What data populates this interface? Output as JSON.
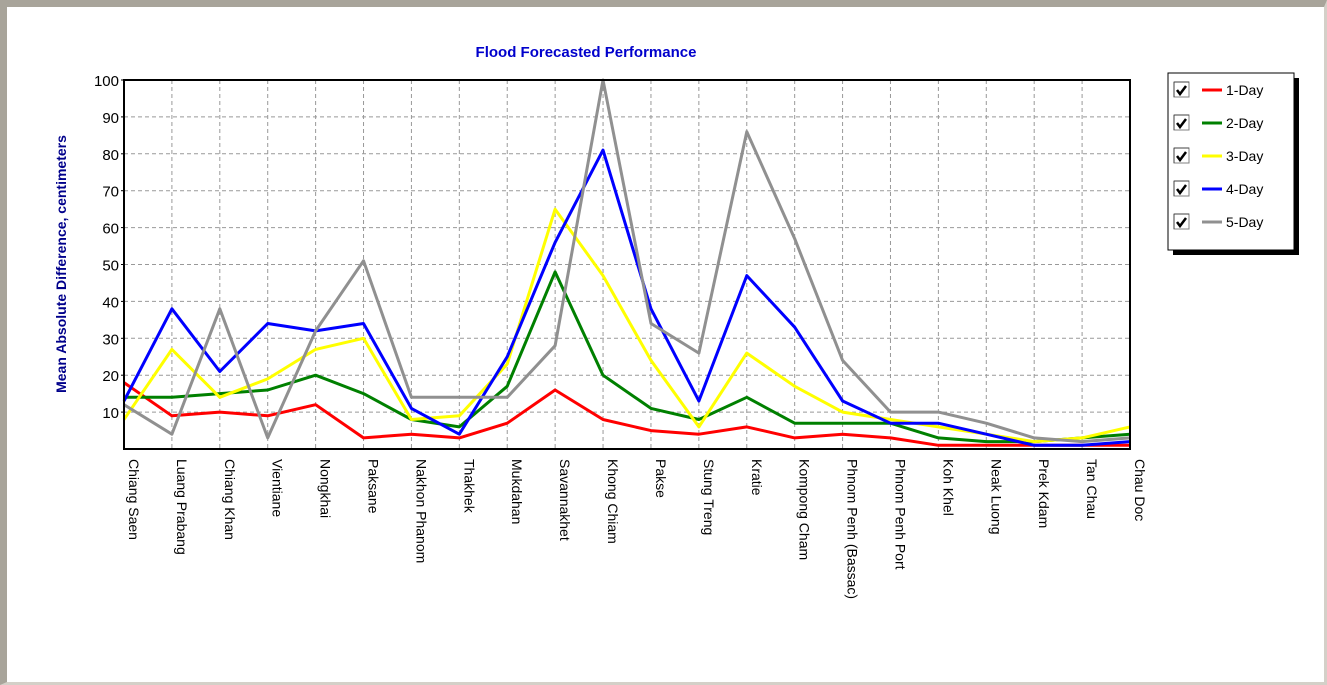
{
  "colors": {
    "title": "#0000cc",
    "ylabel": "#00008b",
    "grid": "#999999"
  },
  "chart_data": {
    "type": "line",
    "title": "Flood Forecasted Performance",
    "xlabel": "",
    "ylabel": "Mean Absolute Difference, centimeters",
    "ylim": [
      0,
      100
    ],
    "yticks": [
      10,
      20,
      30,
      40,
      50,
      60,
      70,
      80,
      90,
      100
    ],
    "grid": true,
    "legend_position": "top-right",
    "categories": [
      "Chiang Saen",
      "Luang Prabang",
      "Chiang Khan",
      "Vientiane",
      "Nongkhai",
      "Paksane",
      "Nakhon Phanom",
      "Thakhek",
      "Mukdahan",
      "Savannakhet",
      "Khong Chiam",
      "Pakse",
      "Stung Treng",
      "Kratie",
      "Kompong Cham",
      "Phnom Penh (Bassac)",
      "Phnom Penh Port",
      "Koh Khel",
      "Neak Luong",
      "Prek Kdam",
      "Tan Chau",
      "Chau Doc"
    ],
    "series": [
      {
        "name": "1-Day",
        "color": "#ff0000",
        "checked": true,
        "values": [
          18,
          9,
          10,
          9,
          12,
          3,
          4,
          3,
          7,
          16,
          8,
          5,
          4,
          6,
          3,
          4,
          3,
          1,
          1,
          1,
          1,
          1
        ]
      },
      {
        "name": "2-Day",
        "color": "#008000",
        "checked": true,
        "values": [
          14,
          14,
          15,
          16,
          20,
          15,
          8,
          6,
          17,
          48,
          20,
          11,
          8,
          14,
          7,
          7,
          7,
          3,
          2,
          2,
          3,
          4
        ]
      },
      {
        "name": "3-Day",
        "color": "#ffff00",
        "checked": true,
        "values": [
          8,
          27,
          14,
          19,
          27,
          30,
          8,
          9,
          23,
          65,
          47,
          24,
          6,
          26,
          17,
          10,
          8,
          6,
          4,
          2,
          3,
          6
        ]
      },
      {
        "name": "4-Day",
        "color": "#0000ff",
        "checked": true,
        "values": [
          13,
          38,
          21,
          34,
          32,
          34,
          11,
          4,
          25,
          56,
          81,
          38,
          13,
          47,
          33,
          13,
          7,
          7,
          4,
          1,
          1,
          2
        ]
      },
      {
        "name": "5-Day",
        "color": "#909090",
        "checked": true,
        "values": [
          12,
          4,
          38,
          3,
          32,
          51,
          14,
          14,
          14,
          28,
          100,
          34,
          26,
          86,
          57,
          24,
          10,
          10,
          7,
          3,
          2,
          3
        ]
      }
    ]
  }
}
